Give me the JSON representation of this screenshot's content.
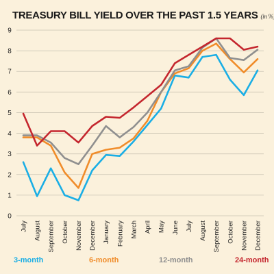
{
  "chart_data": {
    "type": "line",
    "title": "TREASURY BILL YIELD OVER THE PAST 1.5 YEARS",
    "unit": "(in %)",
    "categories": [
      "July",
      "August",
      "September",
      "October",
      "November",
      "December",
      "January",
      "February",
      "March",
      "April",
      "May",
      "June",
      "July",
      "August",
      "September",
      "October",
      "November",
      "December"
    ],
    "ylim": [
      0,
      9
    ],
    "yticks": [
      0,
      1,
      2,
      3,
      4,
      5,
      6,
      7,
      8,
      9
    ],
    "grid": "horizontal",
    "legend_position": "bottom",
    "series": [
      {
        "name": "3-month",
        "color": "#1aaee5",
        "values": [
          2.6,
          0.95,
          2.3,
          1.0,
          0.75,
          2.2,
          2.95,
          2.9,
          3.6,
          4.4,
          5.2,
          6.8,
          6.7,
          7.7,
          7.8,
          6.6,
          5.85,
          7.05
        ]
      },
      {
        "name": "6-month",
        "color": "#f08c2a",
        "values": [
          3.8,
          3.8,
          3.4,
          2.1,
          1.35,
          3.0,
          3.2,
          3.3,
          3.75,
          4.6,
          6.0,
          6.9,
          7.15,
          8.0,
          8.35,
          7.6,
          6.95,
          7.6
        ]
      },
      {
        "name": "12-month",
        "color": "#8f8f8f",
        "values": [
          3.9,
          3.9,
          3.55,
          2.8,
          2.5,
          3.4,
          4.35,
          3.8,
          4.3,
          5.0,
          6.0,
          7.05,
          7.25,
          8.15,
          8.6,
          7.65,
          7.55,
          8.05
        ]
      },
      {
        "name": "24-month",
        "color": "#c4262e",
        "values": [
          4.95,
          3.4,
          4.1,
          4.1,
          3.55,
          4.35,
          4.8,
          4.75,
          5.25,
          5.8,
          6.35,
          7.4,
          7.8,
          8.2,
          8.6,
          8.6,
          8.05,
          8.2
        ]
      }
    ]
  }
}
